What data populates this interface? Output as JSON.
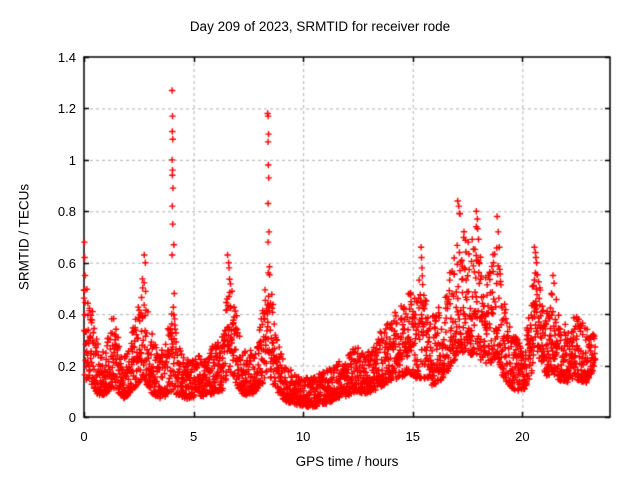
{
  "chart_data": {
    "type": "scatter",
    "title": "Day 209 of 2023, SRMTID for receiver rode",
    "xlabel": "GPS time / hours",
    "ylabel": "SRMTID / TECUs",
    "xlim": [
      0,
      24
    ],
    "ylim": [
      0,
      1.4
    ],
    "xticks": [
      0,
      5,
      10,
      15,
      20
    ],
    "yticks": [
      0,
      0.2,
      0.4,
      0.6,
      0.8,
      1,
      1.2,
      1.4
    ],
    "ytick_labels": [
      "0",
      "0.2",
      "0.4",
      "0.6",
      "0.8",
      "1",
      "1.2",
      "1.4"
    ],
    "xtick_labels": [
      "0",
      "5",
      "10",
      "15",
      "20"
    ],
    "grid": true,
    "legend": "none",
    "marker": "plus",
    "series_name": "SRMTID",
    "x_start": 0.0,
    "x_end": 23.33,
    "sample_step_hours": 0.008333,
    "seed": 20923,
    "envelope": [
      [
        0.0,
        0.15,
        0.55
      ],
      [
        0.25,
        0.14,
        0.48
      ],
      [
        0.5,
        0.1,
        0.35
      ],
      [
        0.75,
        0.08,
        0.25
      ],
      [
        1.0,
        0.09,
        0.26
      ],
      [
        1.3,
        0.12,
        0.44
      ],
      [
        1.5,
        0.1,
        0.33
      ],
      [
        1.8,
        0.07,
        0.22
      ],
      [
        2.1,
        0.09,
        0.3
      ],
      [
        2.4,
        0.12,
        0.42
      ],
      [
        2.7,
        0.15,
        0.55
      ],
      [
        2.9,
        0.12,
        0.45
      ],
      [
        3.1,
        0.09,
        0.33
      ],
      [
        3.4,
        0.07,
        0.24
      ],
      [
        3.7,
        0.08,
        0.28
      ],
      [
        3.95,
        0.1,
        0.4
      ],
      [
        4.05,
        0.1,
        0.45
      ],
      [
        4.2,
        0.09,
        0.32
      ],
      [
        4.5,
        0.07,
        0.24
      ],
      [
        4.8,
        0.07,
        0.22
      ],
      [
        5.1,
        0.08,
        0.24
      ],
      [
        5.5,
        0.08,
        0.24
      ],
      [
        5.9,
        0.09,
        0.28
      ],
      [
        6.3,
        0.1,
        0.32
      ],
      [
        6.6,
        0.18,
        0.58
      ],
      [
        6.8,
        0.15,
        0.5
      ],
      [
        7.1,
        0.1,
        0.32
      ],
      [
        7.4,
        0.08,
        0.25
      ],
      [
        7.7,
        0.09,
        0.27
      ],
      [
        8.0,
        0.11,
        0.33
      ],
      [
        8.3,
        0.15,
        0.55
      ],
      [
        8.45,
        0.18,
        0.65
      ],
      [
        8.6,
        0.13,
        0.45
      ],
      [
        8.9,
        0.09,
        0.28
      ],
      [
        9.2,
        0.06,
        0.2
      ],
      [
        9.6,
        0.05,
        0.17
      ],
      [
        10.0,
        0.04,
        0.15
      ],
      [
        10.5,
        0.04,
        0.16
      ],
      [
        11.0,
        0.05,
        0.18
      ],
      [
        11.5,
        0.07,
        0.21
      ],
      [
        12.0,
        0.08,
        0.23
      ],
      [
        12.4,
        0.1,
        0.28
      ],
      [
        12.8,
        0.09,
        0.24
      ],
      [
        13.2,
        0.1,
        0.27
      ],
      [
        13.6,
        0.12,
        0.35
      ],
      [
        14.0,
        0.14,
        0.38
      ],
      [
        14.4,
        0.15,
        0.44
      ],
      [
        14.8,
        0.17,
        0.5
      ],
      [
        15.1,
        0.15,
        0.46
      ],
      [
        15.4,
        0.15,
        0.58
      ],
      [
        15.7,
        0.12,
        0.4
      ],
      [
        16.1,
        0.13,
        0.42
      ],
      [
        16.5,
        0.16,
        0.48
      ],
      [
        16.9,
        0.22,
        0.65
      ],
      [
        17.1,
        0.25,
        0.82
      ],
      [
        17.35,
        0.25,
        0.72
      ],
      [
        17.65,
        0.24,
        0.66
      ],
      [
        17.9,
        0.25,
        0.78
      ],
      [
        18.1,
        0.22,
        0.62
      ],
      [
        18.5,
        0.2,
        0.56
      ],
      [
        18.85,
        0.24,
        0.72
      ],
      [
        19.1,
        0.16,
        0.48
      ],
      [
        19.4,
        0.12,
        0.36
      ],
      [
        19.8,
        0.1,
        0.3
      ],
      [
        20.1,
        0.11,
        0.3
      ],
      [
        20.4,
        0.16,
        0.45
      ],
      [
        20.6,
        0.28,
        0.64
      ],
      [
        20.8,
        0.22,
        0.5
      ],
      [
        21.1,
        0.16,
        0.42
      ],
      [
        21.4,
        0.17,
        0.52
      ],
      [
        21.7,
        0.14,
        0.4
      ],
      [
        22.0,
        0.13,
        0.36
      ],
      [
        22.3,
        0.15,
        0.4
      ],
      [
        22.6,
        0.14,
        0.38
      ],
      [
        22.9,
        0.13,
        0.35
      ],
      [
        23.1,
        0.15,
        0.33
      ],
      [
        23.3,
        0.2,
        0.32
      ]
    ],
    "outliers": [
      [
        0.02,
        0.68
      ],
      [
        0.03,
        0.62
      ],
      [
        0.05,
        0.55
      ],
      [
        2.75,
        0.63
      ],
      [
        2.8,
        0.6
      ],
      [
        4.02,
        1.27
      ],
      [
        4.04,
        1.17
      ],
      [
        4.03,
        1.11
      ],
      [
        4.05,
        1.08
      ],
      [
        4.02,
        1.0
      ],
      [
        4.04,
        0.96
      ],
      [
        4.03,
        0.94
      ],
      [
        4.06,
        0.89
      ],
      [
        4.03,
        0.82
      ],
      [
        4.05,
        0.75
      ],
      [
        4.02,
        0.63
      ],
      [
        4.1,
        0.67
      ],
      [
        4.12,
        0.48
      ],
      [
        6.55,
        0.63
      ],
      [
        6.6,
        0.6
      ],
      [
        6.62,
        0.58
      ],
      [
        8.38,
        1.18
      ],
      [
        8.4,
        1.17
      ],
      [
        8.42,
        1.1
      ],
      [
        8.4,
        1.07
      ],
      [
        8.41,
        0.98
      ],
      [
        8.43,
        0.93
      ],
      [
        8.4,
        0.83
      ],
      [
        8.44,
        0.72
      ],
      [
        8.4,
        0.68
      ],
      [
        15.38,
        0.66
      ],
      [
        15.4,
        0.62
      ],
      [
        15.42,
        0.58
      ],
      [
        17.05,
        0.84
      ],
      [
        17.1,
        0.82
      ],
      [
        17.15,
        0.79
      ],
      [
        17.9,
        0.8
      ],
      [
        17.95,
        0.77
      ],
      [
        18.85,
        0.78
      ],
      [
        18.9,
        0.72
      ],
      [
        18.95,
        0.66
      ],
      [
        20.55,
        0.66
      ],
      [
        20.6,
        0.64
      ],
      [
        20.62,
        0.62
      ],
      [
        20.65,
        0.6
      ],
      [
        21.4,
        0.55
      ],
      [
        21.45,
        0.52
      ]
    ]
  },
  "colors": {
    "marker": "#ff0000",
    "grid": "#b3b3b3",
    "border": "#000000",
    "background": "#ffffff",
    "text": "#000000"
  }
}
